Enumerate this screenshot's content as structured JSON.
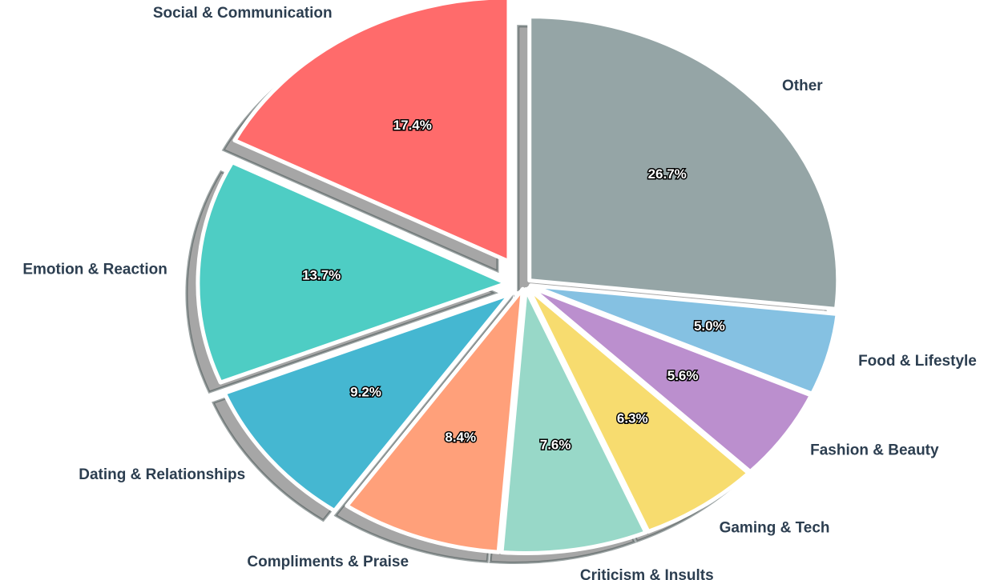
{
  "chart_data": {
    "type": "pie",
    "categories": [
      "Other",
      "Food & Lifestyle",
      "Fashion & Beauty",
      "Gaming & Tech",
      "Criticism & Insults",
      "Compliments & Praise",
      "Dating & Relationships",
      "Emotion & Reaction",
      "Social & Communication"
    ],
    "values": [
      26.7,
      5.0,
      5.6,
      6.3,
      7.6,
      8.4,
      9.2,
      13.7,
      17.4
    ],
    "value_labels": [
      "26.7%",
      "5.0%",
      "5.6%",
      "6.3%",
      "7.6%",
      "8.4%",
      "9.2%",
      "13.7%",
      "17.4%"
    ],
    "colors": [
      "#95a5a6",
      "#85c1e2",
      "#bb8fce",
      "#f7dc6f",
      "#98d8c8",
      "#ffa07a",
      "#45b7d1",
      "#4ecdc4",
      "#ff6b6b"
    ]
  }
}
